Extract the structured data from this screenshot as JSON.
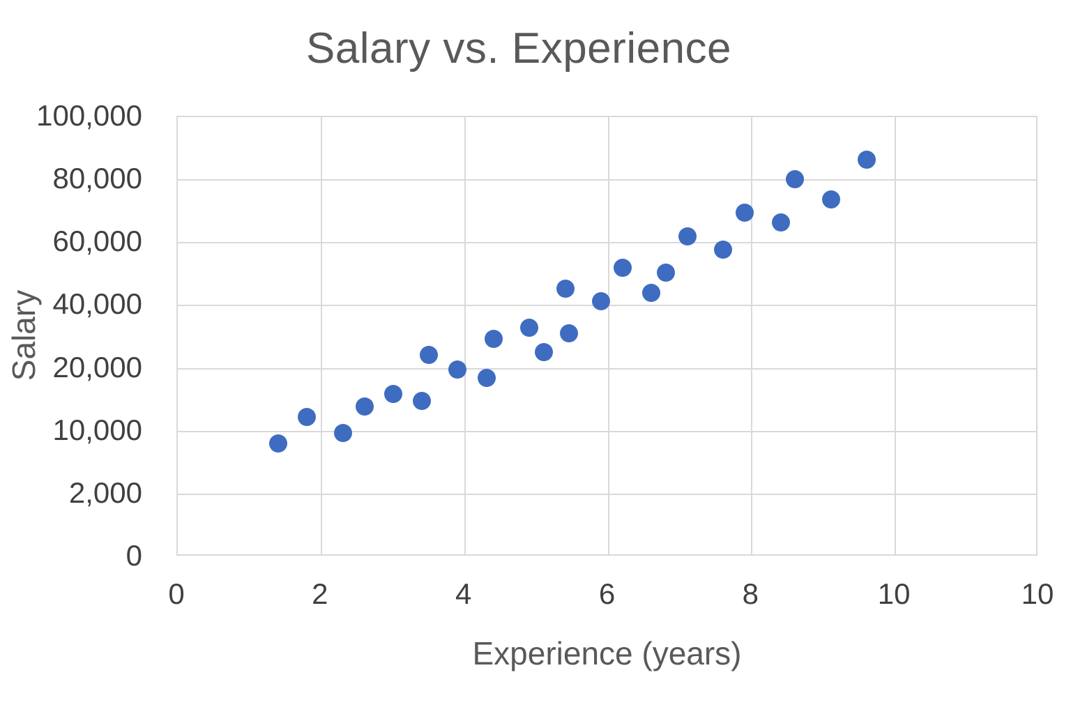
{
  "colors": {
    "marker": "#3E6CC0",
    "grid": "#D9D9D9",
    "tick_text": "#404040",
    "title_text": "#595959",
    "background": "#FFFFFF"
  },
  "chart_data": {
    "type": "scatter",
    "title": "Salary vs. Experience",
    "xlabel": "Experience (years)",
    "ylabel": "Salary",
    "legend": "none",
    "grid": true,
    "x_tick_labels": [
      "0",
      "2",
      "4",
      "6",
      "8",
      "10",
      "10"
    ],
    "y_tick_labels": [
      "100,000",
      "80,000",
      "60,000",
      "40,000",
      "20,000",
      "10,000",
      "2,000",
      "0"
    ],
    "y_tick_values": [
      100000,
      80000,
      60000,
      40000,
      20000,
      10000,
      2000,
      0
    ],
    "points": [
      {
        "experience": 1.4,
        "salary": 8500
      },
      {
        "experience": 1.8,
        "salary": 12300
      },
      {
        "experience": 2.3,
        "salary": 9800
      },
      {
        "experience": 2.6,
        "salary": 14000
      },
      {
        "experience": 3.0,
        "salary": 16000
      },
      {
        "experience": 3.4,
        "salary": 14800
      },
      {
        "experience": 3.5,
        "salary": 24300
      },
      {
        "experience": 3.9,
        "salary": 19800
      },
      {
        "experience": 4.3,
        "salary": 18500
      },
      {
        "experience": 4.4,
        "salary": 29500
      },
      {
        "experience": 4.9,
        "salary": 33000
      },
      {
        "experience": 5.1,
        "salary": 25300
      },
      {
        "experience": 5.45,
        "salary": 31200
      },
      {
        "experience": 5.4,
        "salary": 45500
      },
      {
        "experience": 5.9,
        "salary": 41500
      },
      {
        "experience": 6.2,
        "salary": 52000
      },
      {
        "experience": 6.6,
        "salary": 44000
      },
      {
        "experience": 6.8,
        "salary": 50500
      },
      {
        "experience": 7.1,
        "salary": 62000
      },
      {
        "experience": 7.6,
        "salary": 57800
      },
      {
        "experience": 7.9,
        "salary": 69500
      },
      {
        "experience": 8.4,
        "salary": 66500
      },
      {
        "experience": 8.6,
        "salary": 80200
      },
      {
        "experience": 9.1,
        "salary": 73800
      },
      {
        "experience": 9.6,
        "salary": 86500
      }
    ]
  }
}
